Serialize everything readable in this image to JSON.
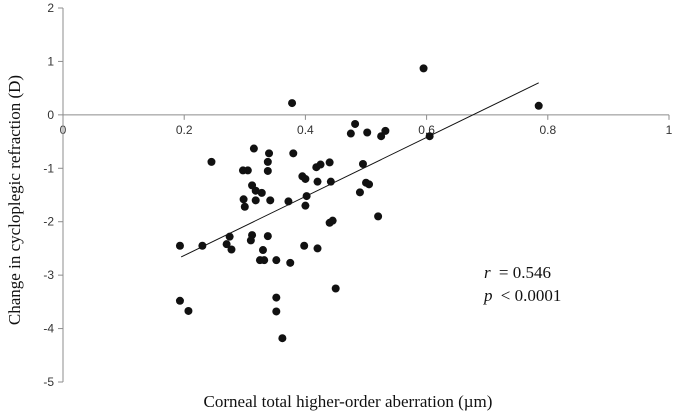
{
  "chart_data": {
    "type": "scatter",
    "xlabel": "Corneal total higher-order aberration (µm)",
    "ylabel": "Change in cycloplegic refraction (D)",
    "xlim": [
      0,
      1
    ],
    "ylim": [
      -5,
      2
    ],
    "x_ticks": [
      "0",
      "0.2",
      "0.4",
      "0.6",
      "0.8",
      "1"
    ],
    "y_ticks": [
      "2",
      "1",
      "0",
      "-1",
      "-2",
      "-3",
      "-4",
      "-5"
    ],
    "grid": false,
    "trendline": {
      "type": "linear",
      "x": [
        0.195,
        0.785
      ],
      "y": [
        -2.66,
        0.6
      ]
    },
    "annotation": {
      "r_label": "r",
      "r_value": "= 0.546",
      "p_label": "p",
      "p_value": "< 0.0001"
    },
    "points": [
      [
        0.378,
        0.22
      ],
      [
        0.595,
        0.87
      ],
      [
        0.785,
        0.17
      ],
      [
        0.482,
        -0.17
      ],
      [
        0.475,
        -0.35
      ],
      [
        0.502,
        -0.33
      ],
      [
        0.525,
        -0.4
      ],
      [
        0.532,
        -0.3
      ],
      [
        0.605,
        -0.4
      ],
      [
        0.245,
        -0.88
      ],
      [
        0.305,
        -1.04
      ],
      [
        0.297,
        -1.04
      ],
      [
        0.315,
        -0.63
      ],
      [
        0.34,
        -0.72
      ],
      [
        0.338,
        -0.88
      ],
      [
        0.338,
        -1.05
      ],
      [
        0.38,
        -0.72
      ],
      [
        0.395,
        -1.15
      ],
      [
        0.4,
        -1.2
      ],
      [
        0.418,
        -0.98
      ],
      [
        0.425,
        -0.93
      ],
      [
        0.44,
        -0.89
      ],
      [
        0.42,
        -1.25
      ],
      [
        0.442,
        -1.25
      ],
      [
        0.495,
        -0.92
      ],
      [
        0.5,
        -1.27
      ],
      [
        0.505,
        -1.3
      ],
      [
        0.312,
        -1.32
      ],
      [
        0.318,
        -1.42
      ],
      [
        0.328,
        -1.46
      ],
      [
        0.298,
        -1.58
      ],
      [
        0.3,
        -1.72
      ],
      [
        0.318,
        -1.6
      ],
      [
        0.342,
        -1.6
      ],
      [
        0.372,
        -1.62
      ],
      [
        0.402,
        -1.52
      ],
      [
        0.4,
        -1.7
      ],
      [
        0.44,
        -2.02
      ],
      [
        0.445,
        -1.98
      ],
      [
        0.49,
        -1.45
      ],
      [
        0.52,
        -1.9
      ],
      [
        0.193,
        -2.45
      ],
      [
        0.23,
        -2.45
      ],
      [
        0.275,
        -2.28
      ],
      [
        0.27,
        -2.42
      ],
      [
        0.278,
        -2.52
      ],
      [
        0.312,
        -2.25
      ],
      [
        0.31,
        -2.35
      ],
      [
        0.338,
        -2.27
      ],
      [
        0.33,
        -2.53
      ],
      [
        0.325,
        -2.72
      ],
      [
        0.332,
        -2.72
      ],
      [
        0.352,
        -2.72
      ],
      [
        0.375,
        -2.77
      ],
      [
        0.398,
        -2.45
      ],
      [
        0.42,
        -2.5
      ],
      [
        0.45,
        -3.25
      ],
      [
        0.193,
        -3.48
      ],
      [
        0.207,
        -3.67
      ],
      [
        0.352,
        -3.42
      ],
      [
        0.352,
        -3.68
      ],
      [
        0.362,
        -4.18
      ]
    ]
  }
}
